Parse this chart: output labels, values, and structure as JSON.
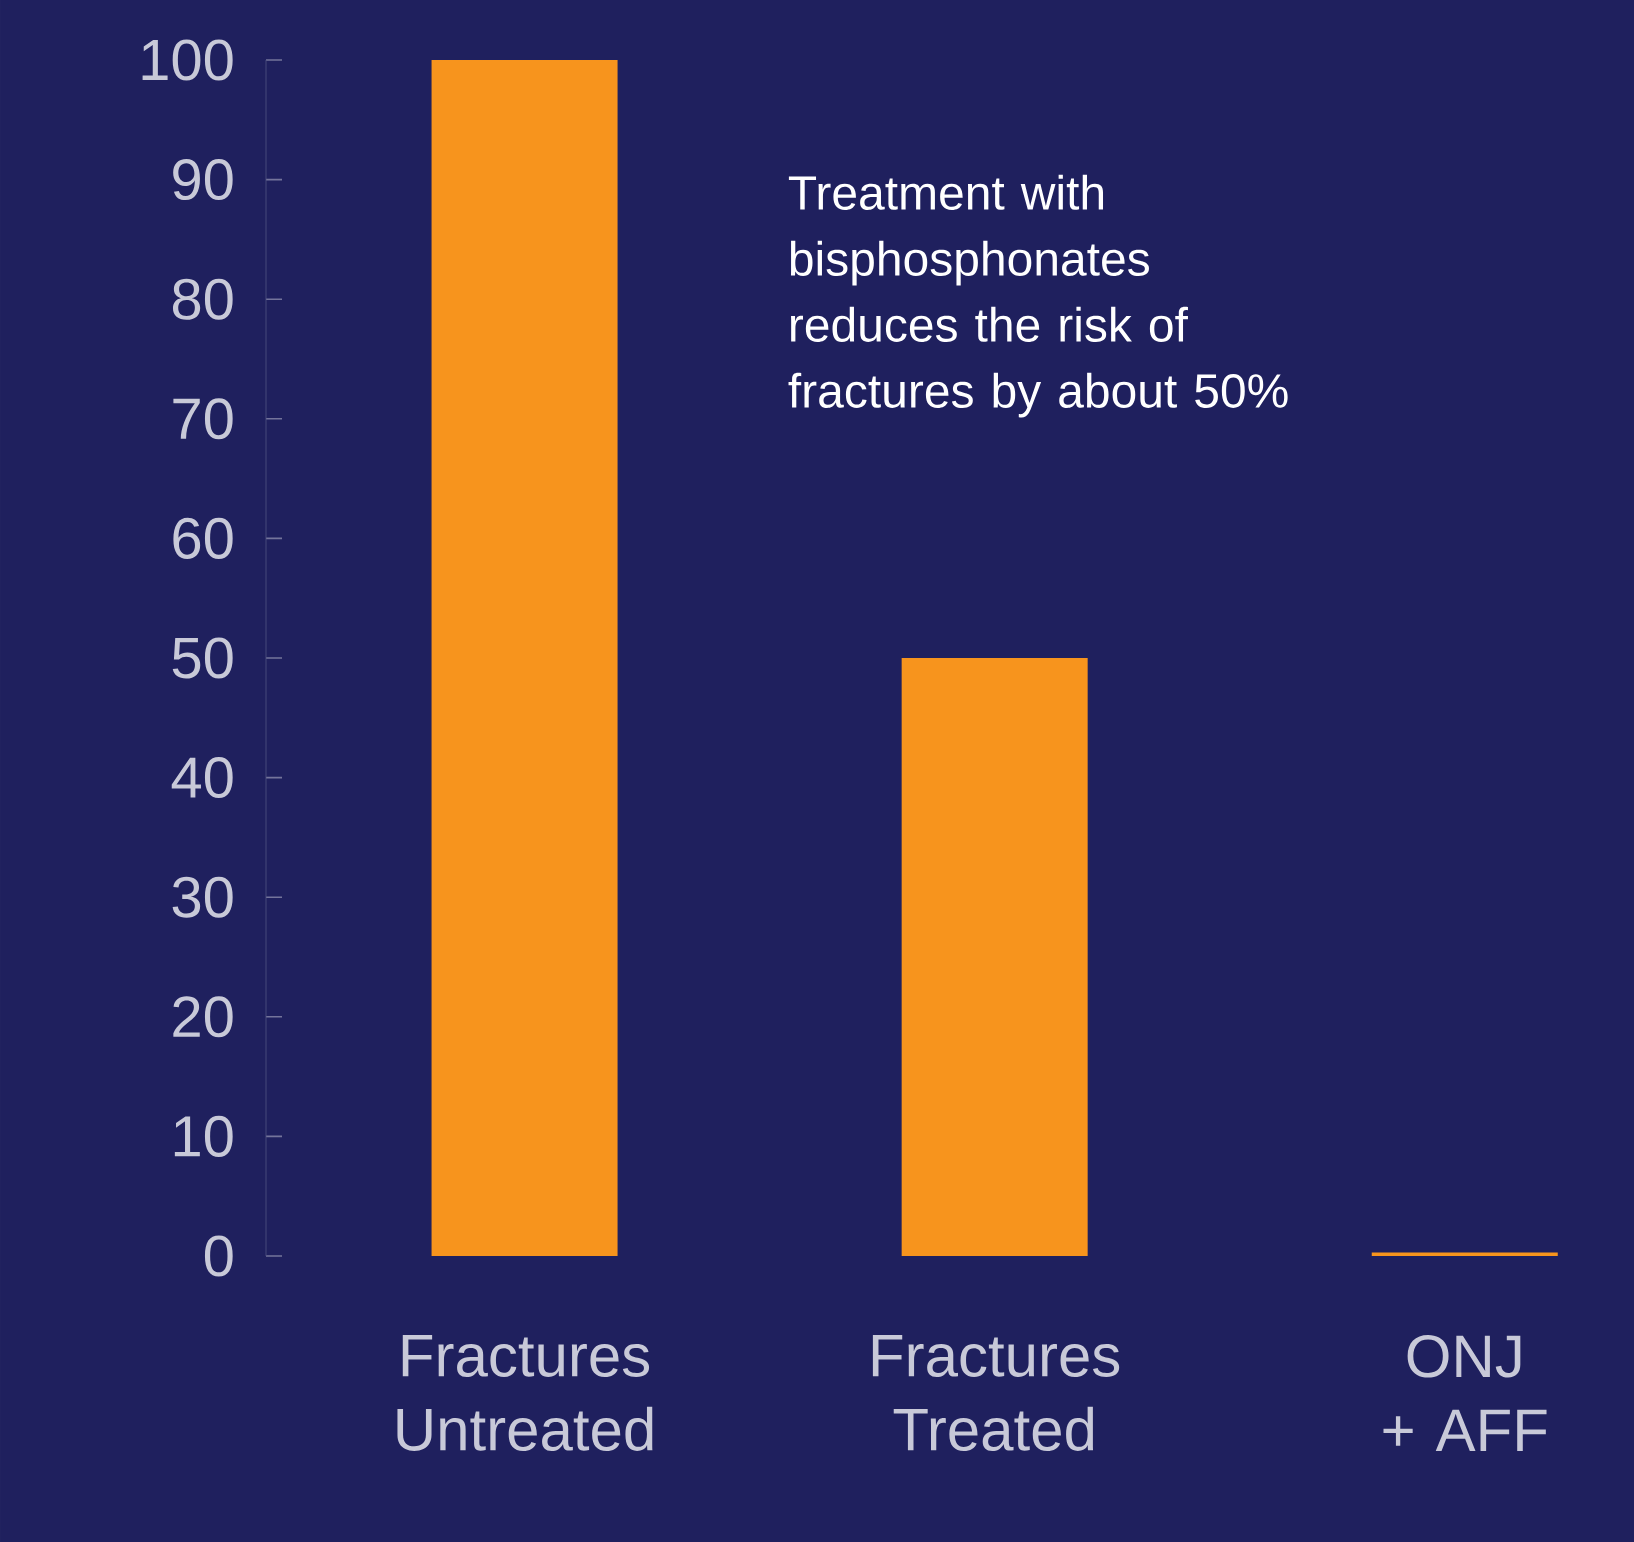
{
  "chart_data": {
    "type": "bar",
    "categories": [
      "Fractures Untreated",
      "Fractures Treated",
      "ONJ + AFF"
    ],
    "values": [
      100,
      50,
      0.3
    ],
    "color": "#f7941d",
    "ylim": [
      0,
      100
    ],
    "yticks": [
      0,
      10,
      20,
      30,
      40,
      50,
      60,
      70,
      80,
      90,
      100
    ],
    "annotations": [
      "Treatment with bisphosphonates reduces the risk of fractures by about 50%"
    ]
  }
}
